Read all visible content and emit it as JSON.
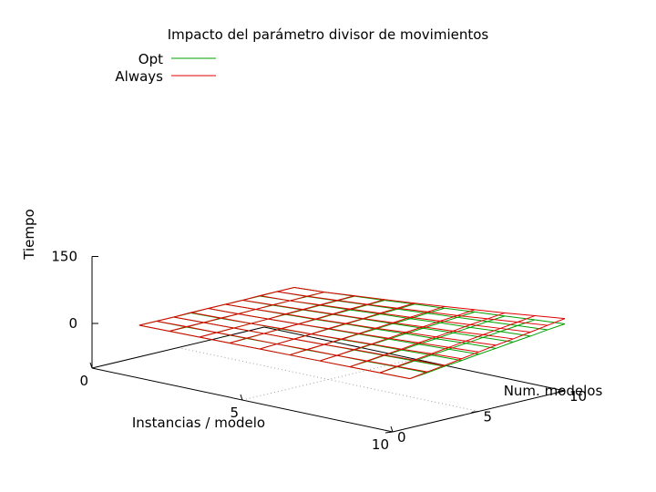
{
  "chart_data": {
    "type": "surface",
    "title": "Impacto del parámetro divisor de movimientos",
    "xlabel": "Instancias / modelo",
    "ylabel": "Num. modelos",
    "zlabel": "Tiempo",
    "xlim": [
      0,
      10
    ],
    "ylim": [
      0,
      10
    ],
    "zlim": [
      -100,
      150
    ],
    "xticks": [
      "0",
      "5",
      "10"
    ],
    "yticks": [
      "0",
      "5",
      "10"
    ],
    "zticks": [
      "0",
      "150"
    ],
    "legend_position": "top-left",
    "grid": false,
    "x": [
      1,
      2,
      3,
      4,
      5,
      6,
      7,
      8,
      9,
      10
    ],
    "y": [
      1,
      2,
      3,
      4,
      5,
      6,
      7,
      8,
      9,
      10
    ],
    "series": [
      {
        "name": "Opt",
        "color": "#00a000",
        "z": [
          [
            1,
            1,
            1,
            1,
            2,
            2,
            2,
            2,
            3,
            3
          ],
          [
            2,
            2,
            3,
            3,
            4,
            5,
            5,
            6,
            6,
            7
          ],
          [
            3,
            4,
            5,
            6,
            7,
            8,
            9,
            10,
            11,
            12
          ],
          [
            4,
            5,
            7,
            8,
            10,
            11,
            13,
            14,
            16,
            17
          ],
          [
            5,
            7,
            9,
            11,
            13,
            15,
            17,
            19,
            21,
            23
          ],
          [
            6,
            8,
            11,
            13,
            16,
            18,
            21,
            23,
            26,
            28
          ],
          [
            7,
            10,
            13,
            16,
            19,
            22,
            25,
            28,
            31,
            34
          ],
          [
            8,
            11,
            15,
            18,
            22,
            25,
            29,
            32,
            36,
            39
          ],
          [
            9,
            13,
            17,
            21,
            25,
            29,
            33,
            37,
            41,
            45
          ],
          [
            10,
            14,
            19,
            23,
            28,
            32,
            37,
            41,
            46,
            50
          ]
        ]
      },
      {
        "name": "Always",
        "color": "#e00000",
        "z": [
          [
            1,
            1,
            1,
            2,
            2,
            2,
            2,
            3,
            3,
            3
          ],
          [
            2,
            3,
            3,
            4,
            4,
            5,
            6,
            6,
            7,
            7
          ],
          [
            3,
            4,
            5,
            6,
            7,
            9,
            10,
            11,
            12,
            13
          ],
          [
            4,
            6,
            7,
            9,
            10,
            12,
            14,
            16,
            17,
            19
          ],
          [
            5,
            7,
            9,
            11,
            14,
            16,
            18,
            21,
            23,
            25
          ],
          [
            6,
            9,
            11,
            14,
            17,
            20,
            23,
            26,
            29,
            32
          ],
          [
            7,
            10,
            14,
            17,
            21,
            25,
            28,
            32,
            35,
            39
          ],
          [
            8,
            12,
            16,
            20,
            25,
            29,
            33,
            38,
            42,
            46
          ],
          [
            9,
            14,
            19,
            24,
            29,
            34,
            39,
            44,
            49,
            54
          ],
          [
            10,
            16,
            21,
            27,
            33,
            39,
            44,
            50,
            56,
            62
          ]
        ]
      }
    ]
  }
}
